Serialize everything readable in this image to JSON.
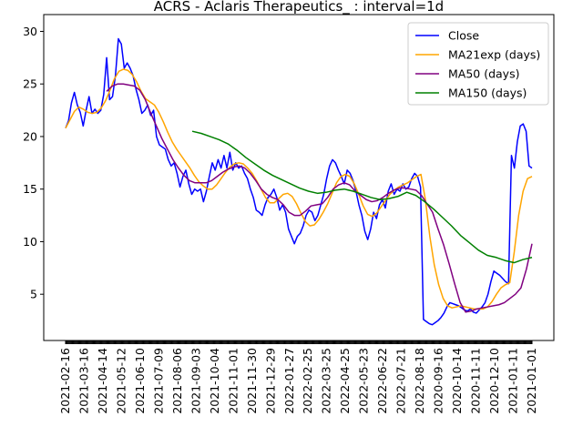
{
  "chart_data": {
    "type": "line",
    "title": "ACRS - Aclaris Therapeutics_ : interval=1d",
    "xlabel": "",
    "ylabel": "",
    "ylim": [
      0.6,
      31.6
    ],
    "yticks": [
      5,
      10,
      15,
      20,
      25,
      30
    ],
    "grid": false,
    "legend_position": "top-right",
    "xtick_labels": [
      "2021-02-16",
      "2021-03-16",
      "2021-04-14",
      "2021-05-12",
      "2021-06-10",
      "2021-07-09",
      "2021-08-06",
      "2021-09-03",
      "2021-10-04",
      "2021-11-01",
      "2021-11-30",
      "2021-12-29",
      "2022-01-27",
      "2022-02-25",
      "2022-03-25",
      "2022-04-25",
      "2022-05-23",
      "2022-06-22",
      "2022-07-21",
      "2022-08-18",
      "2020-09-16",
      "2020-10-14",
      "2020-11-11",
      "2020-12-10",
      "2021-01-11",
      "2021-01-01"
    ],
    "n_points": 546,
    "series": [
      {
        "name": "Close",
        "color": "#0000ff",
        "start": 0,
        "values": [
          20.8,
          21.5,
          23.2,
          24.2,
          23.0,
          22.3,
          21.0,
          22.5,
          23.8,
          22.2,
          22.6,
          22.2,
          22.5,
          24.0,
          27.5,
          23.5,
          23.8,
          25.8,
          29.3,
          28.8,
          26.5,
          27.0,
          26.5,
          25.8,
          24.5,
          23.5,
          22.2,
          22.5,
          23.0,
          22.0,
          22.5,
          20.0,
          19.2,
          19.0,
          18.8,
          17.8,
          17.2,
          17.5,
          16.5,
          15.2,
          16.2,
          16.8,
          15.5,
          14.5,
          15.0,
          14.8,
          15.0,
          13.8,
          14.8,
          16.2,
          17.5,
          16.8,
          17.8,
          17.0,
          18.2,
          17.0,
          18.5,
          16.8,
          17.5,
          17.0,
          17.2,
          16.5,
          16.0,
          15.0,
          14.2,
          13.0,
          12.8,
          12.5,
          13.5,
          14.2,
          14.5,
          15.0,
          14.2,
          13.0,
          13.5,
          12.8,
          11.2,
          10.5,
          9.8,
          10.5,
          10.8,
          11.5,
          12.5,
          13.0,
          12.8,
          12.0,
          12.5,
          13.5,
          14.5,
          16.0,
          17.2,
          17.8,
          17.5,
          16.8,
          16.2,
          15.5,
          16.8,
          16.5,
          15.8,
          14.8,
          13.5,
          12.5,
          11.0,
          10.2,
          11.2,
          12.8,
          12.2,
          13.5,
          14.0,
          13.2,
          14.8,
          15.5,
          14.5,
          15.0,
          14.8,
          15.5,
          15.0,
          15.2,
          16.0,
          16.5,
          16.2,
          15.2,
          2.6,
          2.4,
          2.2,
          2.1,
          2.3,
          2.5,
          2.8,
          3.2,
          3.8,
          4.2,
          4.1,
          4.0,
          3.9,
          3.7,
          3.5,
          3.4,
          3.6,
          3.3,
          3.2,
          3.5,
          3.8,
          4.2,
          5.0,
          6.2,
          7.2,
          7.0,
          6.8,
          6.5,
          6.2,
          6.0,
          18.2,
          17.0,
          19.5,
          21.0,
          21.2,
          20.5,
          17.2,
          17.0
        ]
      },
      {
        "name": "MA21exp (days)",
        "color": "#ffa500",
        "start": 0,
        "values": [
          20.8,
          21.6,
          22.4,
          22.8,
          22.6,
          22.3,
          22.2,
          22.3,
          22.7,
          23.4,
          24.4,
          25.5,
          26.2,
          26.4,
          26.3,
          25.9,
          25.2,
          24.3,
          23.6,
          23.3,
          23.0,
          22.3,
          21.4,
          20.4,
          19.5,
          18.8,
          18.2,
          17.6,
          17.0,
          16.3,
          15.7,
          15.3,
          15.0,
          15.0,
          15.4,
          16.0,
          16.6,
          17.1,
          17.4,
          17.5,
          17.4,
          17.0,
          16.5,
          15.8,
          15.0,
          14.2,
          13.7,
          13.7,
          14.1,
          14.5,
          14.6,
          14.3,
          13.6,
          12.7,
          11.9,
          11.5,
          11.6,
          12.1,
          12.8,
          13.6,
          14.6,
          15.6,
          16.2,
          16.4,
          16.2,
          15.5,
          14.5,
          13.4,
          12.6,
          12.4,
          12.7,
          13.3,
          13.9,
          14.5,
          14.9,
          15.2,
          15.4,
          15.6,
          15.9,
          16.2,
          16.4,
          14.0,
          10.5,
          7.8,
          5.9,
          4.6,
          3.9,
          3.7,
          3.8,
          3.9,
          3.8,
          3.7,
          3.6,
          3.6,
          3.6,
          3.8,
          4.3,
          5.0,
          5.6,
          5.9,
          6.1,
          9.0,
          12.5,
          14.8,
          16.0,
          16.2
        ]
      },
      {
        "name": "MA50 (days)",
        "color": "#800080",
        "start": 48,
        "values": [
          24.3,
          24.8,
          25.0,
          25.0,
          24.9,
          24.8,
          24.4,
          23.5,
          22.2,
          21.0,
          19.8,
          18.8,
          17.8,
          17.0,
          16.3,
          15.8,
          15.6,
          15.6,
          15.6,
          15.8,
          16.2,
          16.6,
          16.9,
          17.1,
          17.2,
          17.0,
          16.5,
          15.8,
          15.0,
          14.5,
          14.2,
          14.0,
          13.5,
          12.8,
          12.5,
          12.5,
          12.9,
          13.4,
          13.5,
          13.6,
          14.2,
          15.0,
          15.4,
          15.6,
          15.4,
          14.8,
          14.4,
          14.0,
          13.8,
          13.9,
          14.2,
          14.6,
          14.9,
          15.1,
          15.1,
          15.0,
          14.9,
          14.4,
          13.6,
          12.8,
          11.2,
          9.7,
          7.9,
          6.0,
          4.2,
          3.3,
          3.4,
          3.6,
          3.7,
          3.8,
          3.9,
          4.0,
          4.2,
          4.6,
          5.0,
          5.6,
          7.4,
          9.8
        ]
      },
      {
        "name": "MA150 (days)",
        "color": "#008000",
        "start": 148,
        "values": [
          20.5,
          20.3,
          20.0,
          19.7,
          19.3,
          18.7,
          18.0,
          17.4,
          16.8,
          16.3,
          15.9,
          15.5,
          15.1,
          14.8,
          14.6,
          14.7,
          14.9,
          15.0,
          14.8,
          14.5,
          14.2,
          14.0,
          14.1,
          14.3,
          14.7,
          14.4,
          13.8,
          13.1,
          12.3,
          11.5,
          10.6,
          9.9,
          9.2,
          8.7,
          8.5,
          8.2,
          8.0,
          8.3,
          8.5
        ]
      }
    ]
  }
}
